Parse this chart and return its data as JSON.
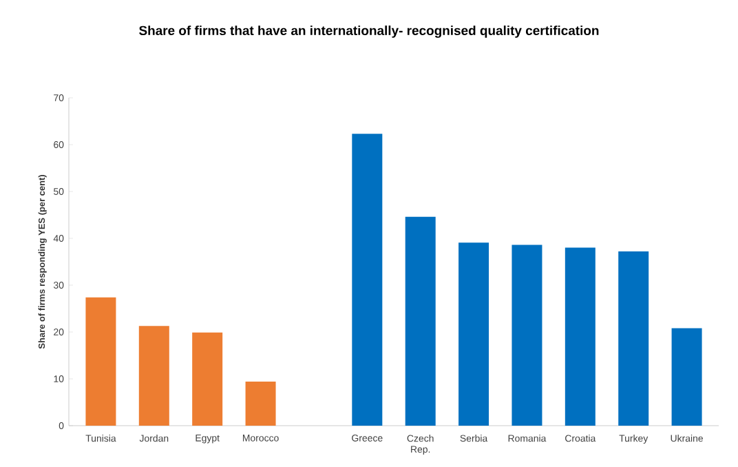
{
  "chart_data": {
    "type": "bar",
    "title": "Share of firms that have an internationally- recognised quality certification",
    "ylabel": "Share of firms responding YES (per cent)",
    "categories": [
      "Tunisia",
      "Jordan",
      "Egypt",
      "Morocco",
      null,
      "Greece",
      "Czech Rep.",
      "Serbia",
      "Romania",
      "Croatia",
      "Turkey",
      "Ukraine"
    ],
    "values": [
      27.4,
      21.3,
      19.9,
      9.4,
      null,
      62.3,
      44.6,
      39.1,
      38.6,
      38.0,
      37.2,
      20.8
    ],
    "colors": [
      "#ed7d31",
      "#ed7d31",
      "#ed7d31",
      "#ed7d31",
      null,
      "#0070c0",
      "#0070c0",
      "#0070c0",
      "#0070c0",
      "#0070c0",
      "#0070c0",
      "#0070c0"
    ],
    "ylim": [
      0,
      70
    ],
    "yticks": [
      0,
      10,
      20,
      30,
      40,
      50,
      60,
      70
    ]
  }
}
